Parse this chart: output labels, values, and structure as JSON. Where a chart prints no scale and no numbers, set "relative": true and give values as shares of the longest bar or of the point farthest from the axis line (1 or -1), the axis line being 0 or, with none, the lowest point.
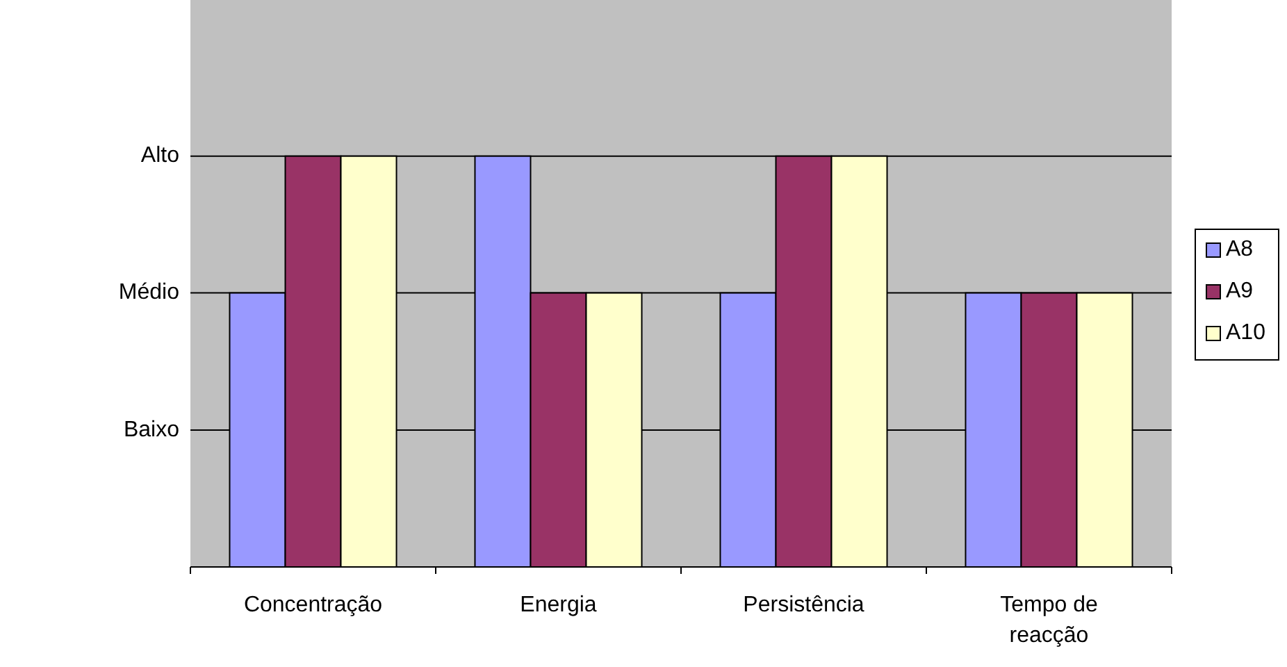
{
  "chart_data": {
    "type": "bar",
    "categories": [
      "Concentração",
      "Energia",
      "Persistência",
      "Tempo de reacção"
    ],
    "series": [
      {
        "name": "A8",
        "color": "#9999ff",
        "values": [
          0.667,
          1,
          0.667,
          0.667
        ]
      },
      {
        "name": "A9",
        "color": "#993366",
        "values": [
          1,
          0.667,
          1,
          0.667
        ]
      },
      {
        "name": "A10",
        "color": "#ffffcc",
        "values": [
          1,
          0.667,
          1,
          0.667
        ]
      }
    ],
    "relative": true,
    "ref_lines": [
      {
        "axis": "y",
        "value": 0.333,
        "label": "Baixo",
        "color": "#000000"
      },
      {
        "axis": "y",
        "value": 0.667,
        "label": "Médio",
        "color": "#000000"
      },
      {
        "axis": "y",
        "value": 1,
        "label": "Alto",
        "color": "#000000"
      }
    ],
    "legend": "right"
  }
}
